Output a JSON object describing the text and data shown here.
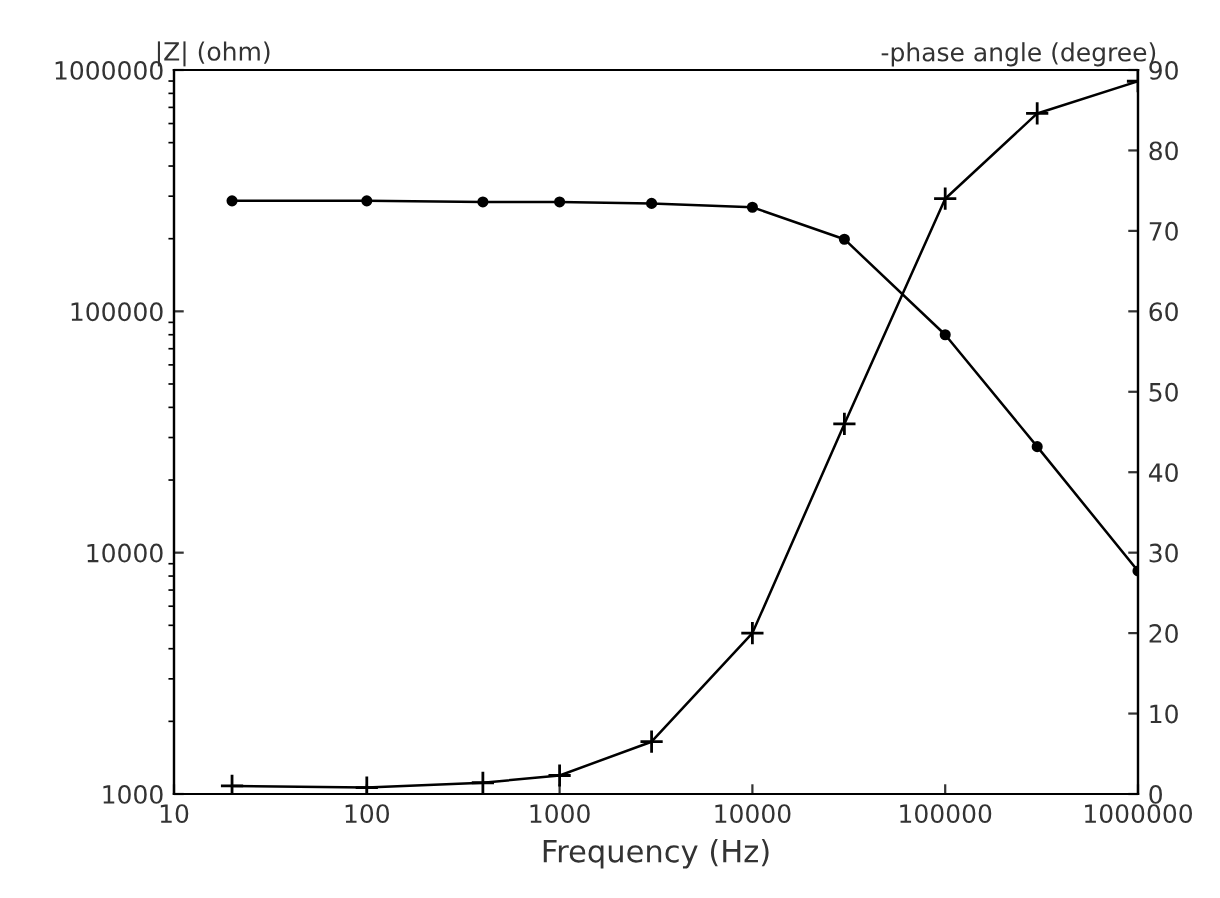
{
  "chart_data": {
    "type": "line",
    "xlabel": "Frequency (Hz)",
    "ylabel": "|Z| (ohm)",
    "y2label": "-phase angle (degree)",
    "x": [
      20,
      100,
      400,
      1000,
      3000,
      10000,
      30000,
      100000,
      300000,
      1000000
    ],
    "series": [
      {
        "color": "#000000",
        "marker": "circle",
        "values": [
          287000,
          287000,
          284000,
          284000,
          280000,
          270000,
          199000,
          80000,
          27500,
          8400
        ]
      },
      {
        "color": "#000000",
        "marker": "cross",
        "axis": "y2",
        "values": [
          1.0,
          0.8,
          1.4,
          2.3,
          6.5,
          20,
          46,
          74,
          84.6,
          88.6
        ]
      }
    ],
    "log": "xy",
    "xlim": [
      10,
      1000000
    ],
    "xticks": [
      10,
      100,
      1000,
      10000,
      100000,
      1000000
    ],
    "ylim": [
      1000,
      1000000
    ],
    "yticks": [
      1000,
      10000,
      100000,
      1000000
    ],
    "y2lim": [
      0,
      90
    ],
    "y2ticks": [
      0,
      10,
      20,
      30,
      40,
      50,
      60,
      70,
      80,
      90
    ],
    "grid": false,
    "legend": false,
    "line_style": "solid"
  }
}
